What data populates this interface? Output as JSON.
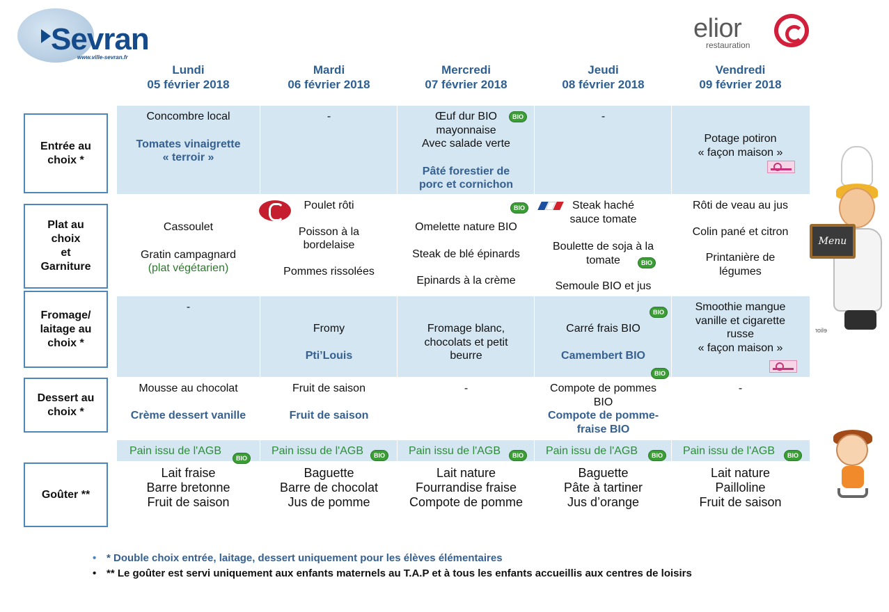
{
  "header": {
    "sevran_logo": "Sevran",
    "sevran_url": "www.ville-sevran.fr",
    "elior_logo": "elior",
    "elior_sub": "restauration"
  },
  "days": [
    {
      "name": "Lundi",
      "date": "05 février 2018"
    },
    {
      "name": "Mardi",
      "date": "06 février 2018"
    },
    {
      "name": "Mercredi",
      "date": "07 février 2018"
    },
    {
      "name": "Jeudi",
      "date": "08 février 2018"
    },
    {
      "name": "Vendredi",
      "date": "09 février 2018"
    }
  ],
  "rows": {
    "entree": {
      "label": [
        "Entrée au",
        "choix *"
      ],
      "cells": [
        {
          "lines": [
            "Concombre local"
          ],
          "alt": [
            "Tomates vinaigrette",
            "« terroir »"
          ]
        },
        {
          "lines": [
            "-"
          ],
          "alt": []
        },
        {
          "lines": [
            "Œuf dur BIO",
            "mayonnaise",
            "Avec salade verte"
          ],
          "alt": [
            "Pâté forestier de",
            "porc et cornichon"
          ]
        },
        {
          "lines": [
            "-"
          ],
          "alt": []
        },
        {
          "lines": [
            "Potage potiron",
            "« façon maison »"
          ],
          "alt": []
        }
      ]
    },
    "plat": {
      "label": [
        "Plat au",
        "choix",
        "et",
        "Garniture"
      ],
      "cells": [
        {
          "lines": [
            "Cassoulet",
            "",
            "Gratin campagnard"
          ],
          "note": "(plat végétarien)"
        },
        {
          "lines": [
            "Poulet rôti",
            "",
            "Poisson à la",
            "bordelaise",
            "",
            "Pommes rissolées"
          ]
        },
        {
          "lines": [
            "",
            "Omelette nature BIO",
            "",
            "Steak de blé épinards",
            "",
            "Epinards à la crème"
          ]
        },
        {
          "lines": [
            "Steak haché",
            "sauce tomate",
            "",
            "Boulette de soja à la",
            "tomate",
            "",
            "Semoule BIO et jus"
          ]
        },
        {
          "lines": [
            "Rôti de veau au jus",
            "",
            "Colin pané et citron",
            "",
            "Printanière de",
            "légumes"
          ]
        }
      ]
    },
    "fromage": {
      "label": [
        "Fromage/",
        "laitage  au",
        "choix *"
      ],
      "cells": [
        {
          "lines": [
            "-"
          ],
          "alt": []
        },
        {
          "lines": [
            "Fromy"
          ],
          "alt": [
            "Pti’Louis"
          ]
        },
        {
          "lines": [
            "Fromage blanc,",
            "chocolats  et petit",
            "beurre"
          ],
          "alt": []
        },
        {
          "lines": [
            "Carré frais BIO"
          ],
          "alt": [
            "Camembert BIO"
          ]
        },
        {
          "lines": [
            "Smoothie mangue",
            "vanille et cigarette",
            "russe",
            "« façon maison »"
          ],
          "alt": []
        }
      ]
    },
    "dessert": {
      "label": [
        "Dessert au",
        "choix *"
      ],
      "cells": [
        {
          "lines": [
            "Mousse au chocolat"
          ],
          "alt": [
            "Crème dessert vanille"
          ]
        },
        {
          "lines": [
            "Fruit de saison"
          ],
          "alt": [
            "Fruit de saison"
          ]
        },
        {
          "lines": [
            "-"
          ],
          "alt": []
        },
        {
          "lines": [
            "Compote de pommes",
            "BIO"
          ],
          "alt": [
            "Compote de pomme-",
            "fraise BIO"
          ]
        },
        {
          "lines": [
            "-"
          ],
          "alt": []
        }
      ]
    },
    "gouter": {
      "label": [
        "Goûter **"
      ],
      "pain": "Pain issu de l'AGB",
      "cells": [
        [
          "Lait fraise",
          "Barre bretonne",
          "Fruit de saison"
        ],
        [
          "Baguette",
          "Barre de chocolat",
          "Jus de pomme"
        ],
        [
          "Lait nature",
          "Fourrandise fraise",
          "Compote de pomme"
        ],
        [
          "Baguette",
          "Pâte à tartiner",
          "Jus d’orange"
        ],
        [
          "Lait nature",
          "Pailloline",
          "Fruit de saison"
        ]
      ]
    }
  },
  "badges": {
    "bio": "BIO",
    "chalkboard": "Menu",
    "chef_mark": "elior"
  },
  "footnotes": [
    "* Double choix entrée, laitage, dessert uniquement pour les élèves élémentaires",
    "** Le goûter est servi uniquement aux enfants maternels au T.A.P et à tous les enfants accueillis aux centres de loisirs"
  ],
  "colors": {
    "band": "#d4e6f2",
    "label_border": "#4e86b9",
    "heading_blue": "#2d5f93",
    "alt_blue": "#35608f",
    "bio_green": "#3c9c35",
    "pain_green": "#2e8b3a"
  }
}
